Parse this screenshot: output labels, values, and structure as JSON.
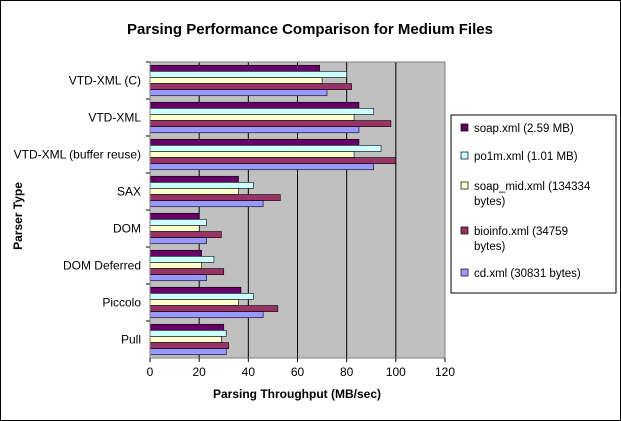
{
  "chart_data": {
    "type": "bar",
    "orientation": "horizontal",
    "title": "Parsing Performance Comparison for Medium Files",
    "xlabel": "Parsing Throughput (MB/sec)",
    "ylabel": "Parser Type",
    "xlim": [
      0,
      120
    ],
    "x_ticks": [
      "0",
      "20",
      "40",
      "60",
      "80",
      "100",
      "120"
    ],
    "grid": true,
    "legend_position": "right",
    "categories": [
      "VTD-XML (C)",
      "VTD-XML",
      "VTD-XML (buffer reuse)",
      "SAX",
      "DOM",
      "DOM Deferred",
      "Piccolo",
      "Pull"
    ],
    "series": [
      {
        "name": "soap.xml (2.59 MB)",
        "legend_lines": [
          "soap.xml (2.59 MB)"
        ],
        "color": "#660066",
        "values": [
          69,
          85,
          85,
          36,
          20,
          21,
          37,
          30
        ]
      },
      {
        "name": "po1m.xml (1.01 MB)",
        "legend_lines": [
          "po1m.xml (1.01 MB)"
        ],
        "color": "#ccffff",
        "values": [
          80,
          91,
          94,
          42,
          23,
          26,
          42,
          31
        ]
      },
      {
        "name": "soap_mid.xml (134334 bytes)",
        "legend_lines": [
          "soap_mid.xml (134334",
          "bytes)"
        ],
        "color": "#ffffcc",
        "values": [
          70,
          83,
          83,
          36,
          20,
          21,
          36,
          29
        ]
      },
      {
        "name": "bioinfo.xml  (34759 bytes)",
        "legend_lines": [
          "bioinfo.xml  (34759",
          "bytes)"
        ],
        "color": "#993366",
        "values": [
          82,
          98,
          100,
          53,
          29,
          30,
          52,
          32
        ]
      },
      {
        "name": "cd.xml (30831 bytes)",
        "legend_lines": [
          "cd.xml (30831 bytes)"
        ],
        "color": "#9999ff",
        "values": [
          72,
          85,
          91,
          46,
          23,
          23,
          46,
          31
        ]
      }
    ]
  }
}
